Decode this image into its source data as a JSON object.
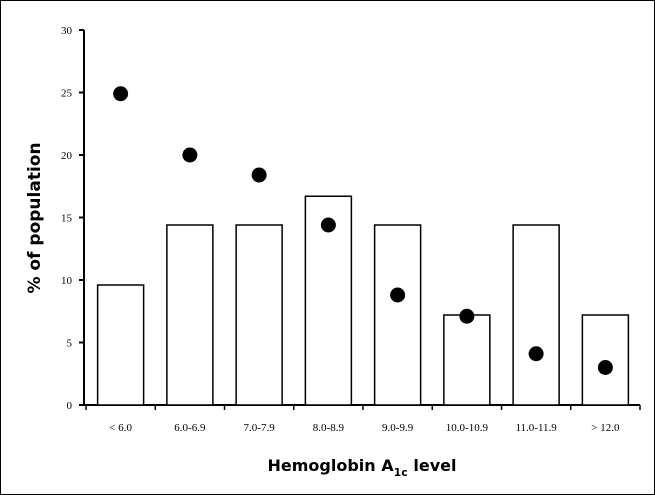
{
  "chart_data": {
    "type": "bar",
    "title": "",
    "xlabel": {
      "prefix": "Hemoglobin A",
      "subscript": "1c",
      "suffix": " level"
    },
    "ylabel": "% of population",
    "ylim": [
      0,
      30
    ],
    "yticks": [
      0,
      5,
      10,
      15,
      20,
      25,
      30
    ],
    "categories": [
      "< 6.0",
      "6.0-6.9",
      "7.0-7.9",
      "8.0-8.9",
      "9.0-9.9",
      "10.0-10.9",
      "11.0-11.9",
      "> 12.0"
    ],
    "series": [
      {
        "type": "bar",
        "values": [
          9.6,
          14.4,
          14.4,
          16.7,
          14.4,
          7.2,
          14.4,
          7.2
        ],
        "color": "#ffffff"
      },
      {
        "type": "scatter",
        "values": [
          24.9,
          20.0,
          18.4,
          14.4,
          8.8,
          7.1,
          4.1,
          3.0
        ],
        "color": "#000000"
      }
    ],
    "grid": false,
    "legend": "none"
  }
}
